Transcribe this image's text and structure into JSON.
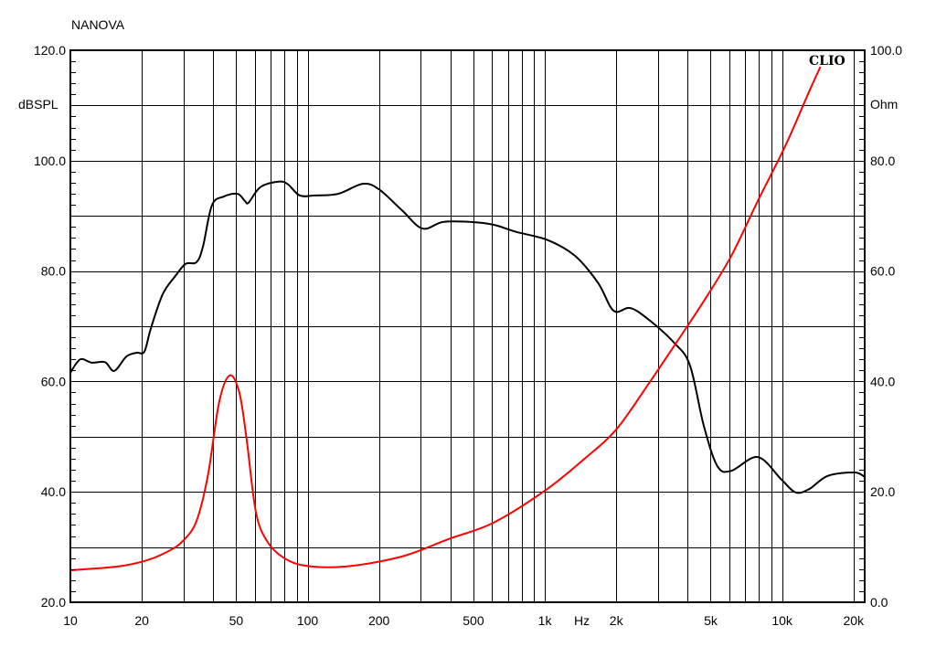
{
  "chart_data": {
    "type": "line",
    "title": "NANOVA",
    "watermark": "CLIO",
    "xlabel": "Hz",
    "ylabel": "dBSPL",
    "y2label": "Ohm",
    "xscale": "log",
    "xlim": [
      10,
      22300
    ],
    "ylim": [
      20,
      120
    ],
    "y2lim": [
      0,
      100
    ],
    "grid": true,
    "x_ticks": [
      {
        "value": 10,
        "label": "10"
      },
      {
        "value": 20,
        "label": "20"
      },
      {
        "value": 50,
        "label": "50"
      },
      {
        "value": 100,
        "label": "100"
      },
      {
        "value": 200,
        "label": "200"
      },
      {
        "value": 500,
        "label": "500"
      },
      {
        "value": 1000,
        "label": "1k"
      },
      {
        "value": 2000,
        "label": "2k"
      },
      {
        "value": 5000,
        "label": "5k"
      },
      {
        "value": 10000,
        "label": "10k"
      },
      {
        "value": 20000,
        "label": "20k"
      }
    ],
    "y_ticks": [
      {
        "value": 20,
        "label": "20.0"
      },
      {
        "value": 40,
        "label": "40.0"
      },
      {
        "value": 60,
        "label": "60.0"
      },
      {
        "value": 80,
        "label": "80.0"
      },
      {
        "value": 100,
        "label": "100.0"
      },
      {
        "value": 120,
        "label": "120.0"
      }
    ],
    "y2_ticks": [
      {
        "value": 0,
        "label": "0.0"
      },
      {
        "value": 20,
        "label": "20.0"
      },
      {
        "value": 40,
        "label": "40.0"
      },
      {
        "value": 60,
        "label": "60.0"
      },
      {
        "value": 80,
        "label": "80.0"
      },
      {
        "value": 100,
        "label": "100.0"
      }
    ],
    "series": [
      {
        "axis": "left",
        "color": "#000000",
        "x": [
          10,
          11,
          12.3,
          14,
          15.3,
          17.2,
          19,
          20.5,
          21.8,
          24.5,
          27.7,
          30.6,
          34,
          36.2,
          39.5,
          44.3,
          50.6,
          54.4,
          56.4,
          63.2,
          75.6,
          82.7,
          92.6,
          107.5,
          134.7,
          171,
          200,
          250,
          305,
          372,
          486,
          607,
          757,
          1030,
          1345,
          1680,
          1950,
          2290,
          2740,
          3510,
          4090,
          4670,
          5330,
          6100,
          7900,
          9950,
          11400,
          13000,
          15600,
          20200,
          22300
        ],
        "y": [
          61.6,
          64.0,
          63.4,
          63.5,
          61.9,
          64.5,
          65.2,
          65.4,
          69.5,
          75.8,
          79.1,
          81.3,
          81.6,
          84.4,
          91.9,
          93.5,
          94.0,
          92.7,
          92.4,
          95.2,
          96.2,
          95.7,
          93.7,
          93.7,
          94.0,
          95.8,
          94.8,
          91.0,
          87.7,
          88.9,
          88.9,
          88.4,
          87.1,
          85.6,
          82.7,
          77.8,
          72.8,
          73.3,
          71.2,
          67.0,
          62.9,
          52.1,
          44.7,
          43.8,
          46.3,
          42.2,
          39.9,
          40.5,
          42.9,
          43.5,
          42.7
        ]
      },
      {
        "axis": "right",
        "color": "#ff0000",
        "x": [
          10,
          16,
          21,
          26,
          29.8,
          34,
          38,
          42.4,
          47,
          51.6,
          55.3,
          60.5,
          67.4,
          79,
          98.5,
          147,
          250,
          390,
          607,
          1000,
          1470,
          2000,
          2740,
          3580,
          4670,
          6100,
          7900,
          10300,
          13000,
          14500
        ],
        "y": [
          5.8,
          6.5,
          7.6,
          9.3,
          11.1,
          14.7,
          23.0,
          36.3,
          41.1,
          37.9,
          29.6,
          16.4,
          11.1,
          8.1,
          6.6,
          6.5,
          8.3,
          11.4,
          14.4,
          20.2,
          26.0,
          31.3,
          39.6,
          47.0,
          54.5,
          62.7,
          72.7,
          82.6,
          92.5,
          97.0
        ]
      }
    ]
  }
}
